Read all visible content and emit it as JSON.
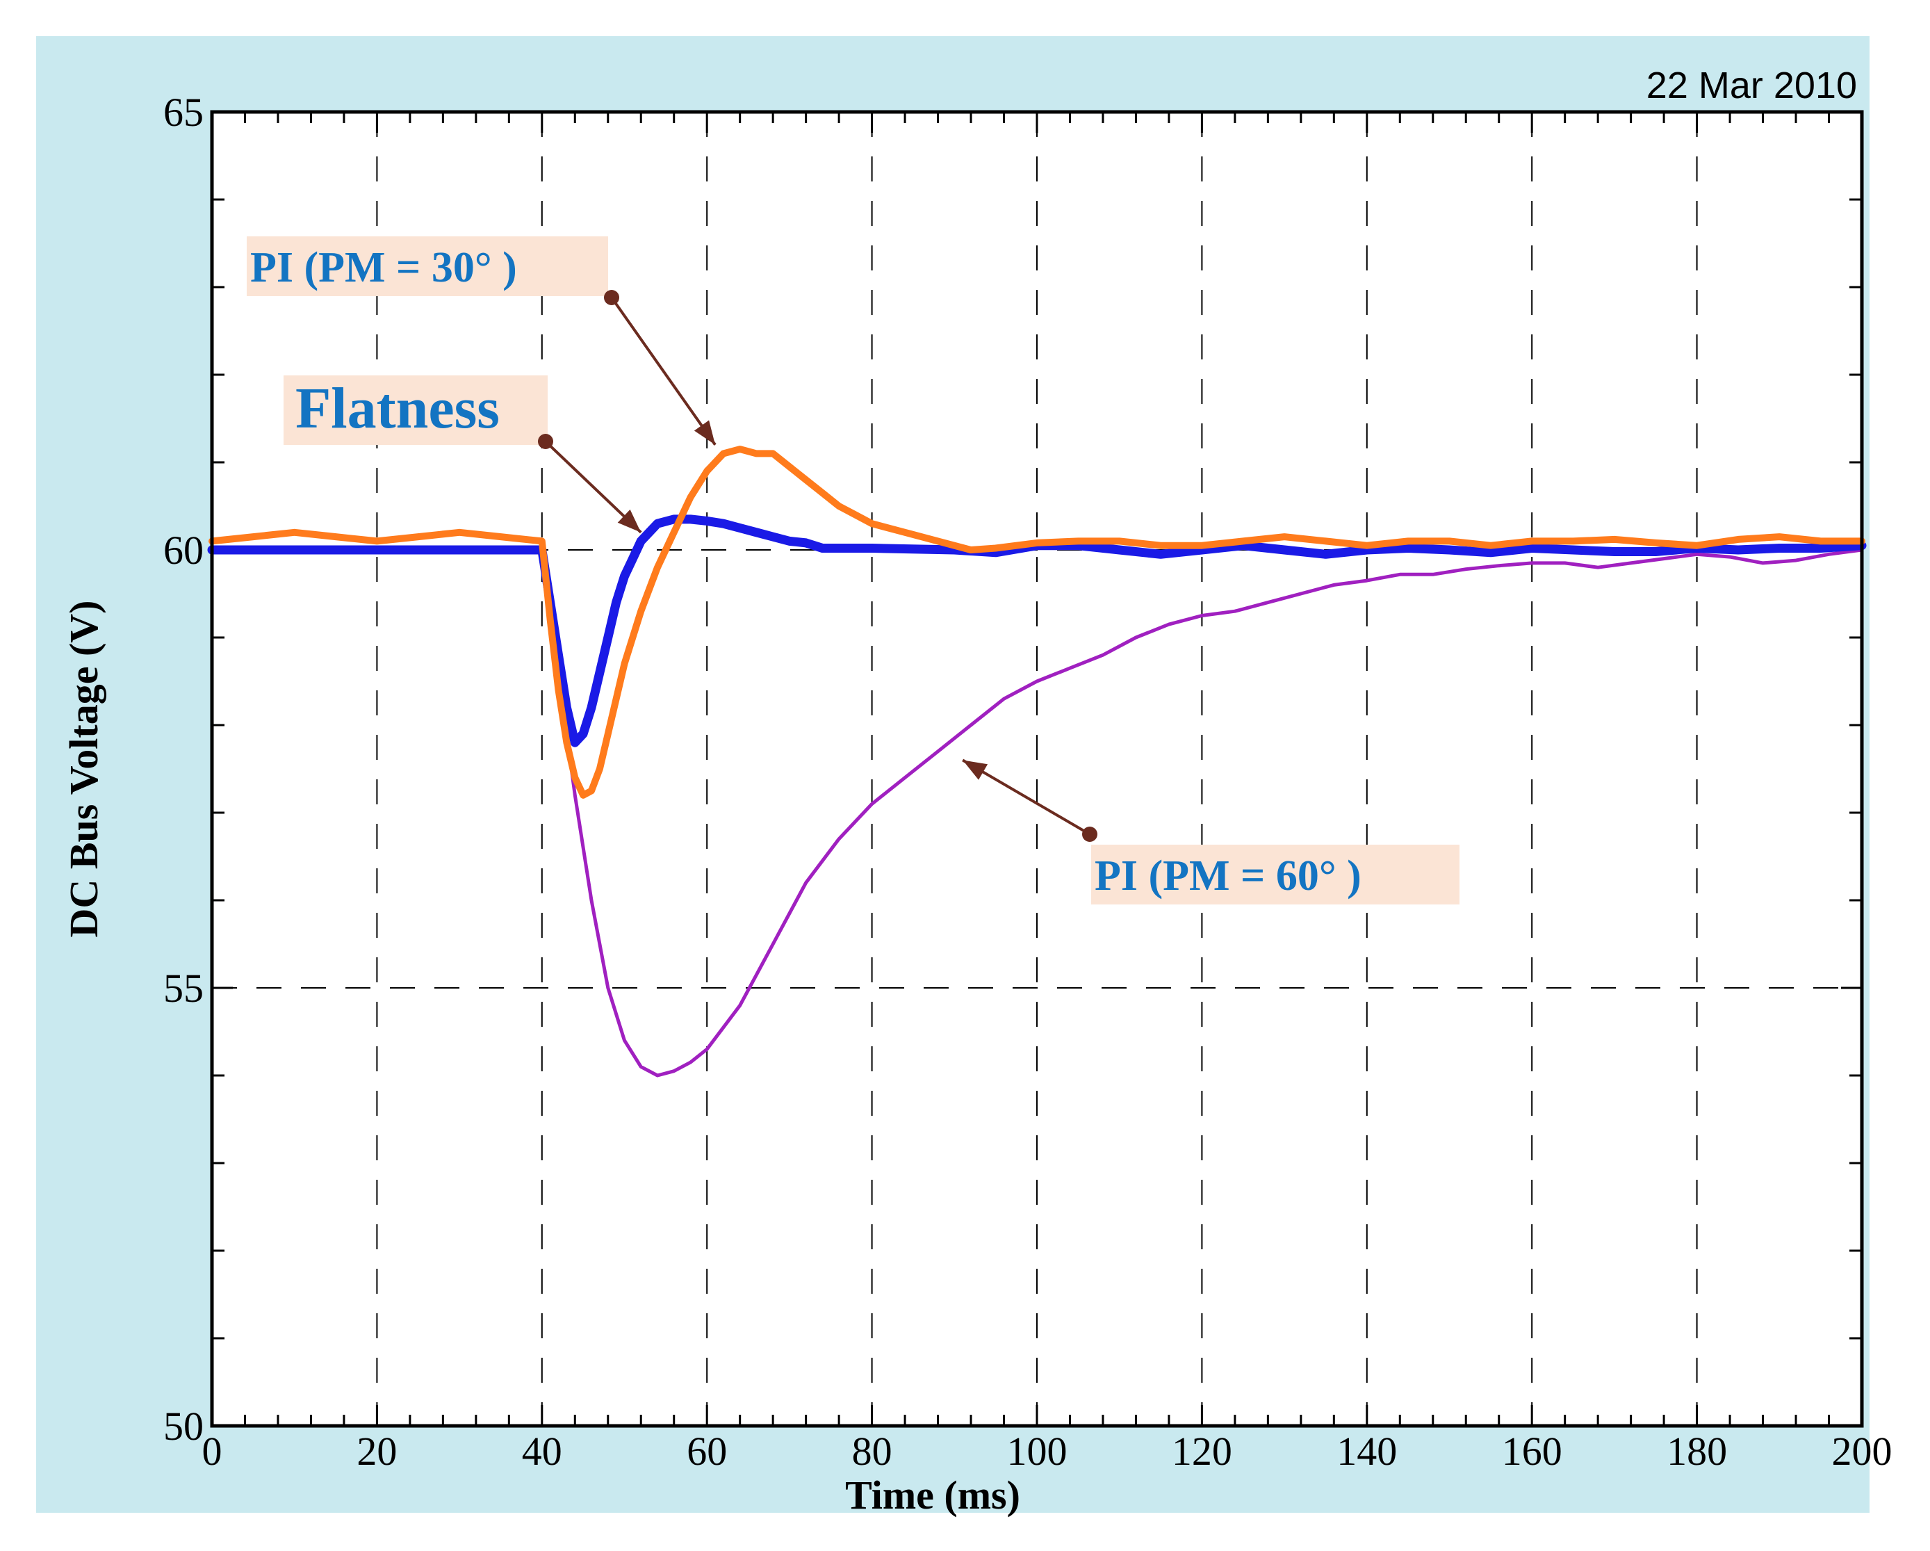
{
  "chart_data": {
    "type": "line",
    "date_stamp": "22 Mar 2010",
    "xlabel": "Time (ms)",
    "ylabel": "DC Bus Voltage (V)",
    "xlim": [
      0,
      200
    ],
    "ylim": [
      50,
      65
    ],
    "x_ticks": [
      "0",
      "20",
      "40",
      "60",
      "80",
      "100",
      "120",
      "140",
      "160",
      "180",
      "200"
    ],
    "y_ticks": [
      "50",
      "55",
      "60",
      "65"
    ],
    "grid": "dashed",
    "colors": {
      "flatness": "#1a1ae6",
      "pi30": "#ff7b1c",
      "pi60": "#a020c0",
      "annotation_text": "#1374c2",
      "annotation_bg": "#fbe4d5",
      "arrow": "#6b2b1f",
      "frame_bg": "#c9e9ef"
    },
    "annotations": [
      {
        "label": "PI (PM = 30° )",
        "target_x": 61,
        "target_y": 61.2
      },
      {
        "label": "Flatness",
        "target_x": 52,
        "target_y": 60.2
      },
      {
        "label": "PI (PM = 60° )",
        "target_x": 91,
        "target_y": 57.6
      }
    ],
    "series": [
      {
        "key": "flatness",
        "x": [
          0,
          10,
          20,
          30,
          40,
          41,
          42,
          43,
          44,
          45,
          46,
          47,
          48,
          49,
          50,
          51,
          52,
          54,
          56,
          58,
          60,
          62,
          64,
          66,
          68,
          70,
          72,
          74,
          80,
          90,
          95,
          100,
          105,
          110,
          115,
          120,
          125,
          130,
          135,
          140,
          145,
          150,
          155,
          160,
          165,
          170,
          175,
          180,
          185,
          190,
          195,
          200
        ],
        "y": [
          60.0,
          60.0,
          60.0,
          60.0,
          60.0,
          59.4,
          58.8,
          58.2,
          57.8,
          57.9,
          58.2,
          58.6,
          59.0,
          59.4,
          59.7,
          59.9,
          60.1,
          60.3,
          60.35,
          60.35,
          60.33,
          60.3,
          60.25,
          60.2,
          60.15,
          60.1,
          60.08,
          60.02,
          60.02,
          60.0,
          59.97,
          60.05,
          60.05,
          60.0,
          59.95,
          60.0,
          60.05,
          60.0,
          59.95,
          60.0,
          60.02,
          60.0,
          59.97,
          60.02,
          60.0,
          59.98,
          59.98,
          60.02,
          60.0,
          60.02,
          60.02,
          60.05
        ]
      },
      {
        "key": "pi30",
        "x": [
          0,
          5,
          10,
          15,
          20,
          25,
          30,
          35,
          40,
          41,
          42,
          43,
          44,
          45,
          46,
          47,
          48,
          50,
          52,
          54,
          56,
          58,
          60,
          62,
          64,
          66,
          68,
          70,
          72,
          74,
          76,
          78,
          80,
          84,
          88,
          92,
          95,
          100,
          105,
          110,
          115,
          120,
          125,
          130,
          135,
          140,
          145,
          150,
          155,
          160,
          165,
          170,
          175,
          180,
          185,
          190,
          195,
          200
        ],
        "y": [
          60.1,
          60.15,
          60.2,
          60.15,
          60.1,
          60.15,
          60.2,
          60.15,
          60.1,
          59.2,
          58.4,
          57.8,
          57.4,
          57.2,
          57.25,
          57.5,
          57.9,
          58.7,
          59.3,
          59.8,
          60.2,
          60.6,
          60.9,
          61.1,
          61.15,
          61.1,
          61.1,
          60.95,
          60.8,
          60.65,
          60.5,
          60.4,
          60.3,
          60.2,
          60.1,
          60.0,
          60.02,
          60.08,
          60.1,
          60.1,
          60.05,
          60.05,
          60.1,
          60.15,
          60.1,
          60.05,
          60.1,
          60.1,
          60.05,
          60.1,
          60.1,
          60.12,
          60.08,
          60.05,
          60.12,
          60.15,
          60.1,
          60.1
        ]
      },
      {
        "key": "pi60",
        "x": [
          40,
          42,
          44,
          46,
          48,
          50,
          52,
          54,
          56,
          58,
          60,
          64,
          68,
          72,
          76,
          80,
          84,
          88,
          92,
          96,
          100,
          104,
          108,
          112,
          116,
          120,
          124,
          128,
          132,
          136,
          140,
          144,
          148,
          152,
          156,
          160,
          164,
          168,
          172,
          176,
          180,
          184,
          188,
          192,
          196,
          200
        ],
        "y": [
          60.0,
          58.6,
          57.2,
          56.0,
          55.0,
          54.4,
          54.1,
          54.0,
          54.05,
          54.15,
          54.3,
          54.8,
          55.5,
          56.2,
          56.7,
          57.1,
          57.4,
          57.7,
          58.0,
          58.3,
          58.5,
          58.65,
          58.8,
          59.0,
          59.15,
          59.25,
          59.3,
          59.4,
          59.5,
          59.6,
          59.65,
          59.72,
          59.72,
          59.78,
          59.82,
          59.85,
          59.85,
          59.8,
          59.85,
          59.9,
          59.95,
          59.92,
          59.85,
          59.88,
          59.95,
          60.0
        ]
      }
    ]
  }
}
